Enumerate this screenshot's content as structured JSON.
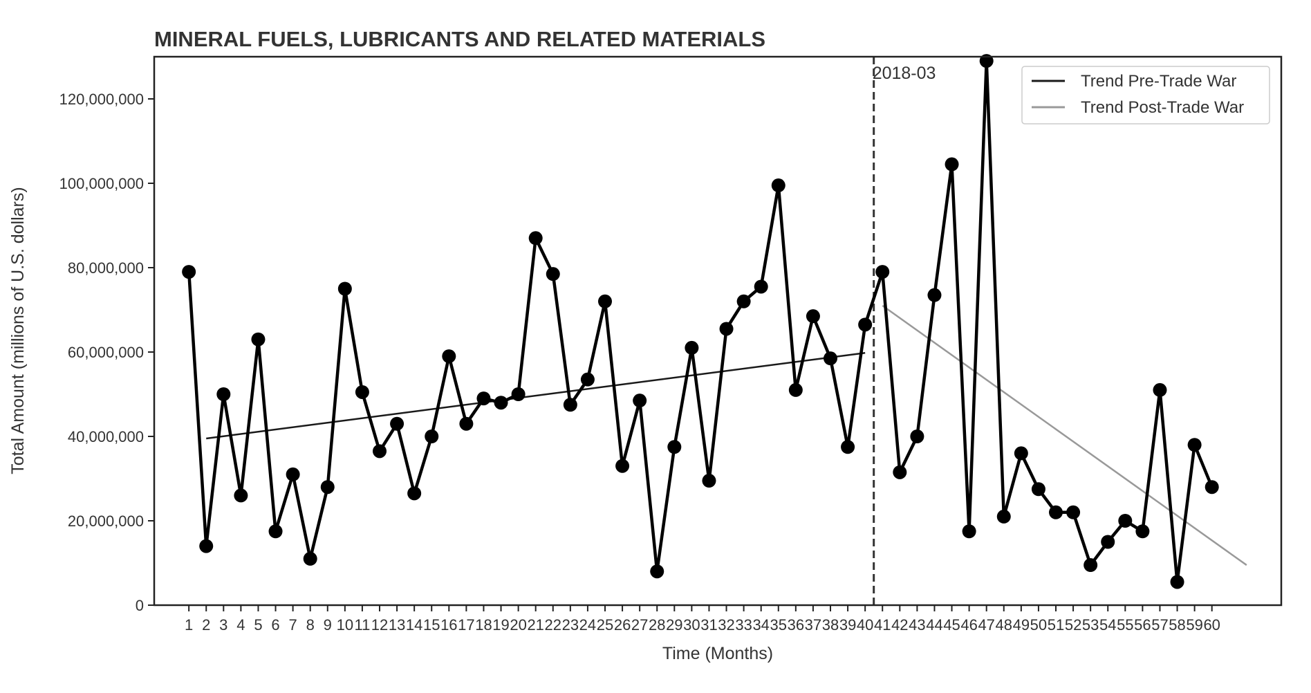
{
  "chart_data": {
    "type": "line",
    "title": "MINERAL FUELS, LUBRICANTS AND RELATED MATERIALS",
    "xlabel": "Time (Months)",
    "ylabel": "Total Amount (millions of U.S. dollars)",
    "x": [
      1,
      2,
      3,
      4,
      5,
      6,
      7,
      8,
      9,
      10,
      11,
      12,
      13,
      14,
      15,
      16,
      17,
      18,
      19,
      20,
      21,
      22,
      23,
      24,
      25,
      26,
      27,
      28,
      29,
      30,
      31,
      32,
      33,
      34,
      35,
      36,
      37,
      38,
      39,
      40,
      41,
      42,
      43,
      44,
      45,
      46,
      47,
      48,
      49,
      50,
      51,
      52,
      53,
      54,
      55,
      56,
      57,
      58,
      59,
      60
    ],
    "x_tick_labels": [
      "1",
      "2",
      "3",
      "4",
      "5",
      "6",
      "7",
      "8",
      "9",
      "10",
      "11",
      "12",
      "13",
      "14",
      "15",
      "16",
      "17",
      "18",
      "19",
      "20",
      "21",
      "22",
      "23",
      "24",
      "25",
      "26",
      "27",
      "28",
      "29",
      "30",
      "31",
      "32",
      "33",
      "34",
      "35",
      "36",
      "37",
      "38",
      "39",
      "40",
      "41",
      "42",
      "43",
      "44",
      "45",
      "46",
      "47",
      "48",
      "49",
      "50",
      "51",
      "52",
      "53",
      "54",
      "55",
      "56",
      "57",
      "58",
      "59",
      "60"
    ],
    "ylim": [
      0,
      130000000
    ],
    "xlim": [
      -1,
      64
    ],
    "y_ticks": [
      0,
      20000000,
      40000000,
      60000000,
      80000000,
      100000000,
      120000000
    ],
    "y_tick_labels": [
      "0",
      "20,000,000",
      "40,000,000",
      "60,000,000",
      "80,000,000",
      "100,000,000",
      "120,000,000"
    ],
    "series": [
      {
        "name": "",
        "color": "#000000",
        "marker": "circle",
        "values": [
          79000000,
          14000000,
          50000000,
          26000000,
          63000000,
          17500000,
          31000000,
          11000000,
          28000000,
          75000000,
          50500000,
          36500000,
          43000000,
          26500000,
          40000000,
          59000000,
          43000000,
          49000000,
          48000000,
          50000000,
          87000000,
          78500000,
          47500000,
          53500000,
          72000000,
          33000000,
          48500000,
          8000000,
          37500000,
          61000000,
          29500000,
          65500000,
          72000000,
          75500000,
          99500000,
          51000000,
          68500000,
          58500000,
          37500000,
          66500000,
          79000000,
          31500000,
          40000000,
          73500000,
          104500000,
          17500000,
          129000000,
          21000000,
          36000000,
          27500000,
          22000000,
          22000000,
          9500000,
          15000000,
          20000000,
          17500000,
          51000000,
          5500000,
          38000000,
          28000000
        ]
      }
    ],
    "trend_lines": [
      {
        "name": "Trend Pre-Trade War",
        "color": "#1a1a1a",
        "x": [
          2,
          40
        ],
        "y": [
          39500000,
          59800000
        ]
      },
      {
        "name": "Trend Post-Trade War",
        "color": "#999999",
        "x": [
          41,
          62
        ],
        "y": [
          71000000,
          9500000
        ]
      }
    ],
    "vline": {
      "x": 40.5,
      "label": "2018-03",
      "style": "dashed",
      "color": "#333333"
    },
    "legend": {
      "placement": "top-right",
      "entries": [
        "Trend Pre-Trade War",
        "Trend Post-Trade War"
      ]
    },
    "grid": false
  }
}
